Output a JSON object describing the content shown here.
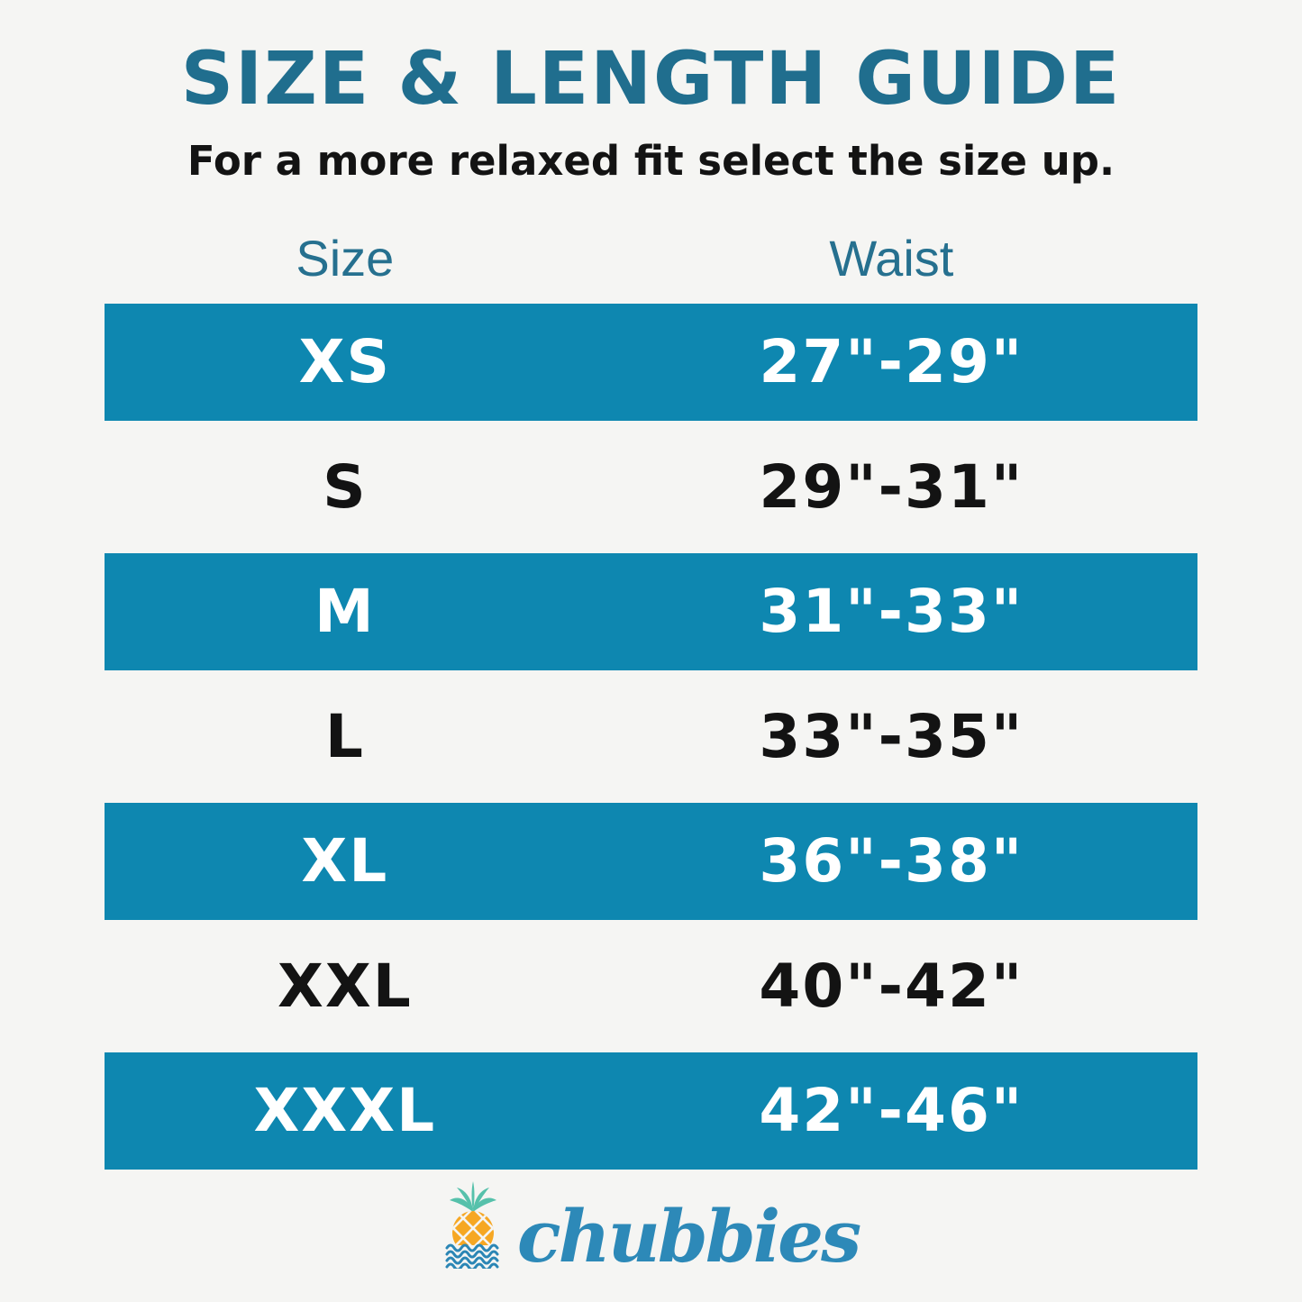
{
  "page": {
    "title": "SIZE & LENGTH GUIDE",
    "subtitle": "For a more relaxed fit select the size up."
  },
  "table": {
    "columns": [
      "Size",
      "Waist"
    ],
    "rows": [
      {
        "size": "XS",
        "waist": "27\"-29\"",
        "highlighted": true
      },
      {
        "size": "S",
        "waist": "29\"-31\"",
        "highlighted": false
      },
      {
        "size": "M",
        "waist": "31\"-33\"",
        "highlighted": true
      },
      {
        "size": "L",
        "waist": "33\"-35\"",
        "highlighted": false
      },
      {
        "size": "XL",
        "waist": "36\"-38\"",
        "highlighted": true
      },
      {
        "size": "XXL",
        "waist": "40\"-42\"",
        "highlighted": false
      },
      {
        "size": "XXXL",
        "waist": "42\"-46\"",
        "highlighted": true
      }
    ]
  },
  "brand": {
    "name": "chubbies",
    "logo_icon": "pineapple-waves-icon"
  },
  "colors": {
    "background": "#f5f5f3",
    "title_teal": "#206e8e",
    "header_teal": "#26708f",
    "row_highlight": "#0e87b0",
    "row_text_white": "#ffffff",
    "text_black": "#131313",
    "brand_blue": "#2d89b8",
    "pineapple_orange": "#f6a723",
    "leaf_green": "#56c1ab",
    "wave_blue": "#2b86b5"
  },
  "chart_data": {
    "type": "table",
    "title": "SIZE & LENGTH GUIDE",
    "subtitle": "For a more relaxed fit select the size up.",
    "columns": [
      "Size",
      "Waist"
    ],
    "rows": [
      [
        "XS",
        "27\"-29\""
      ],
      [
        "S",
        "29\"-31\""
      ],
      [
        "M",
        "31\"-33\""
      ],
      [
        "L",
        "33\"-35\""
      ],
      [
        "XL",
        "36\"-38\""
      ],
      [
        "XXL",
        "40\"-42\""
      ],
      [
        "XXXL",
        "42\"-46\""
      ]
    ],
    "highlighted_rows": [
      "XS",
      "M",
      "XL",
      "XXXL"
    ],
    "layout_hints": {
      "highlight_style": "alternating teal bars with white text",
      "legend": "none",
      "grid": "off"
    }
  }
}
